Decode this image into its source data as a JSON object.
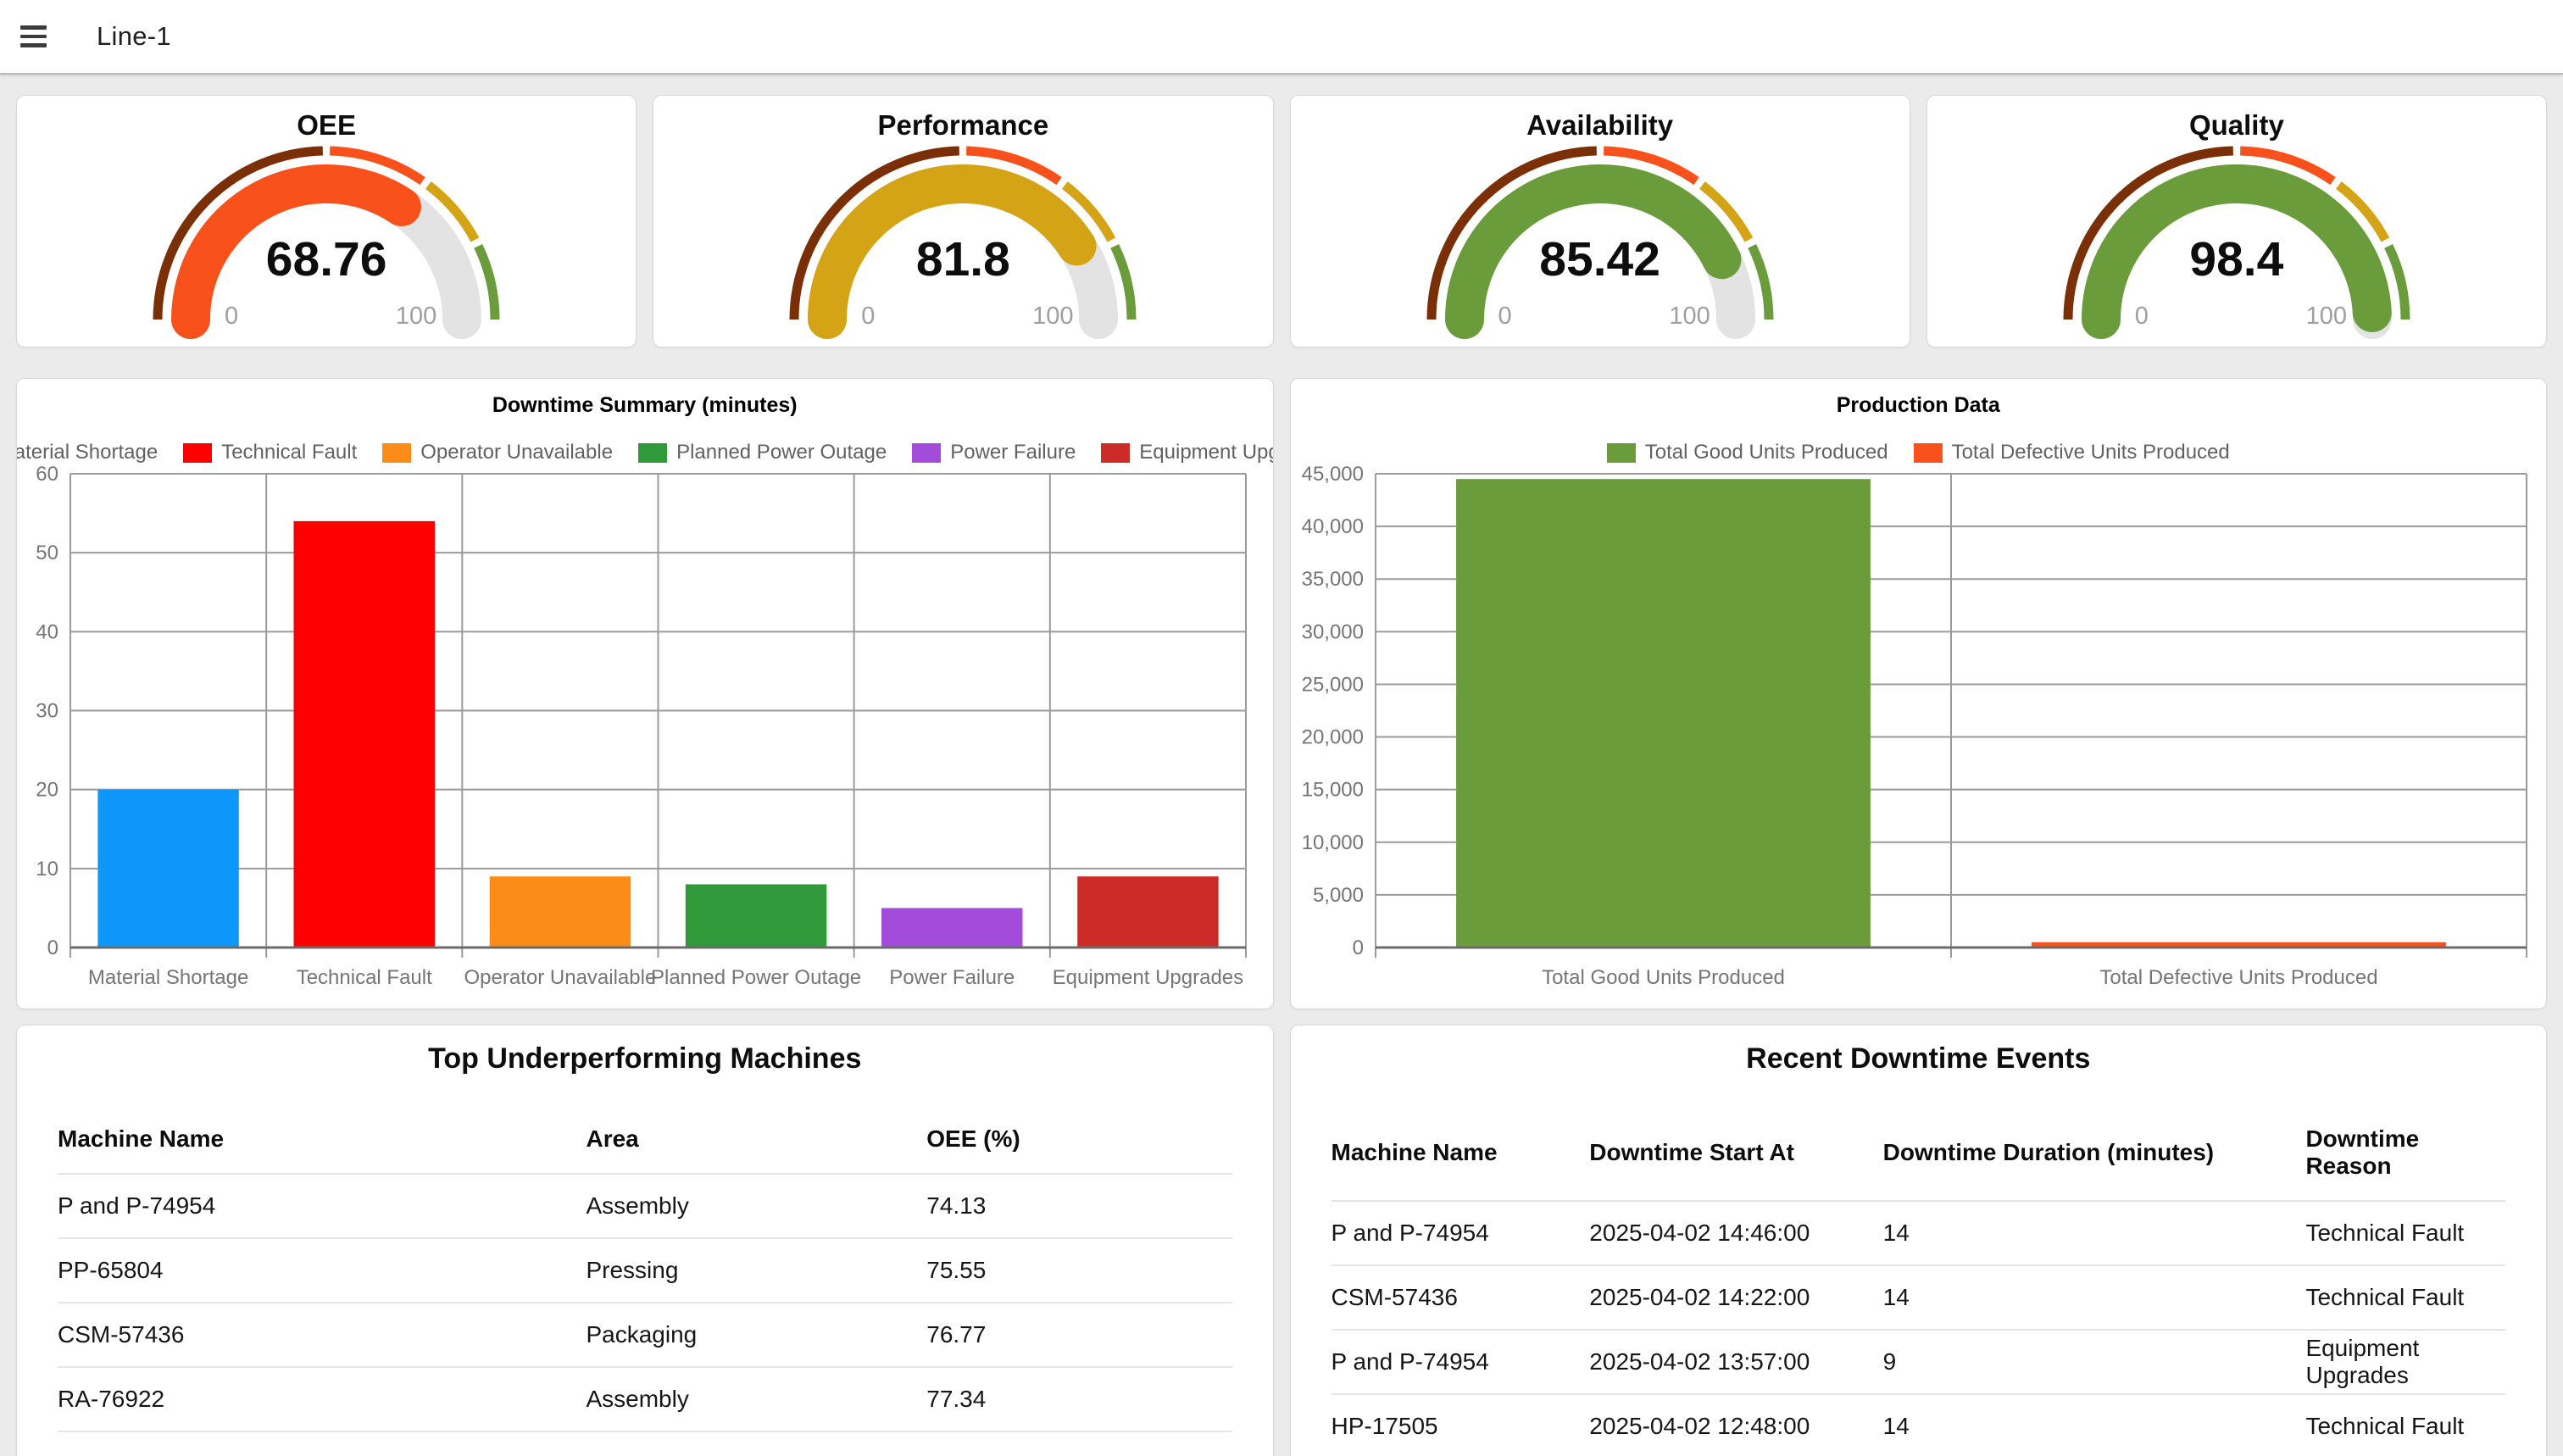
{
  "header": {
    "title": "Line-1",
    "menu_icon": "hamburger"
  },
  "theme": {
    "page_bg": "#EBEBEB",
    "card_border": "#D9D9D9",
    "grid_line": "#9B9B9B",
    "baseline": "#6B6B6B",
    "axis_label": "#757575",
    "legend_text": "#616161",
    "gauge_rest": "#E3E3E3",
    "band_brown": "#7A2F06",
    "band_red": "#F9511B",
    "band_gold": "#D4A316",
    "band_green": "#6B9C3C"
  },
  "gauge_bands": [
    {
      "from": 0,
      "to": 50,
      "color": "#7A2F06"
    },
    {
      "from": 50,
      "to": 70,
      "color": "#F9511B"
    },
    {
      "from": 70,
      "to": 85,
      "color": "#D4A316"
    },
    {
      "from": 85,
      "to": 100,
      "color": "#6B9C3C"
    }
  ],
  "chart_data": [
    {
      "type": "gauge",
      "title": "OEE",
      "value": 68.76,
      "value_label": "68.76",
      "min": 0,
      "max": 100,
      "min_label": "0",
      "max_label": "100",
      "fill_color": "#F9511B"
    },
    {
      "type": "gauge",
      "title": "Performance",
      "value": 81.8,
      "value_label": "81.8",
      "min": 0,
      "max": 100,
      "min_label": "0",
      "max_label": "100",
      "fill_color": "#D4A316"
    },
    {
      "type": "gauge",
      "title": "Availability",
      "value": 85.42,
      "value_label": "85.42",
      "min": 0,
      "max": 100,
      "min_label": "0",
      "max_label": "100",
      "fill_color": "#6B9C3C"
    },
    {
      "type": "gauge",
      "title": "Quality",
      "value": 98.4,
      "value_label": "98.4",
      "min": 0,
      "max": 100,
      "min_label": "0",
      "max_label": "100",
      "fill_color": "#6B9C3C"
    },
    {
      "type": "bar",
      "title": "Downtime Summary (minutes)",
      "categories": [
        "Material Shortage",
        "Technical Fault",
        "Operator Unavailable",
        "Planned Power Outage",
        "Power Failure",
        "Equipment Upgrades"
      ],
      "values": [
        20,
        54,
        9,
        8,
        5,
        9
      ],
      "colors": [
        "#0E97FA",
        "#FE0000",
        "#FB8C17",
        "#30993A",
        "#A34BDB",
        "#CD2B27"
      ],
      "xlabel": "",
      "ylabel": "",
      "ylim": [
        0,
        60
      ],
      "ytick_step": 10,
      "grid": true,
      "legend_position": "top"
    },
    {
      "type": "bar",
      "title": "Production Data",
      "categories": [
        "Total Good Units Produced",
        "Total Defective Units Produced"
      ],
      "values": [
        44500,
        500
      ],
      "colors": [
        "#6B9C3C",
        "#F9511B"
      ],
      "xlabel": "",
      "ylabel": "",
      "ylim": [
        0,
        45000
      ],
      "ytick_step": 5000,
      "grid": true,
      "legend_position": "top"
    }
  ],
  "tables": [
    {
      "title": "Top Underperforming Machines",
      "columns": [
        "Machine Name",
        "Area",
        "OEE (%)"
      ],
      "rows": [
        [
          "P and P-74954",
          "Assembly",
          "74.13"
        ],
        [
          "PP-65804",
          "Pressing",
          "75.55"
        ],
        [
          "CSM-57436",
          "Packaging",
          "76.77"
        ],
        [
          "RA-76922",
          "Assembly",
          "77.34"
        ]
      ]
    },
    {
      "title": "Recent Downtime Events",
      "columns": [
        "Machine Name",
        "Downtime Start At",
        "Downtime Duration (minutes)",
        "Downtime Reason"
      ],
      "rows": [
        [
          "P and P-74954",
          "2025-04-02 14:46:00",
          "14",
          "Technical Fault"
        ],
        [
          "CSM-57436",
          "2025-04-02 14:22:00",
          "14",
          "Technical Fault"
        ],
        [
          "P and P-74954",
          "2025-04-02 13:57:00",
          "9",
          "Equipment Upgrades"
        ],
        [
          "HP-17505",
          "2025-04-02 12:48:00",
          "14",
          "Technical Fault"
        ]
      ]
    }
  ]
}
